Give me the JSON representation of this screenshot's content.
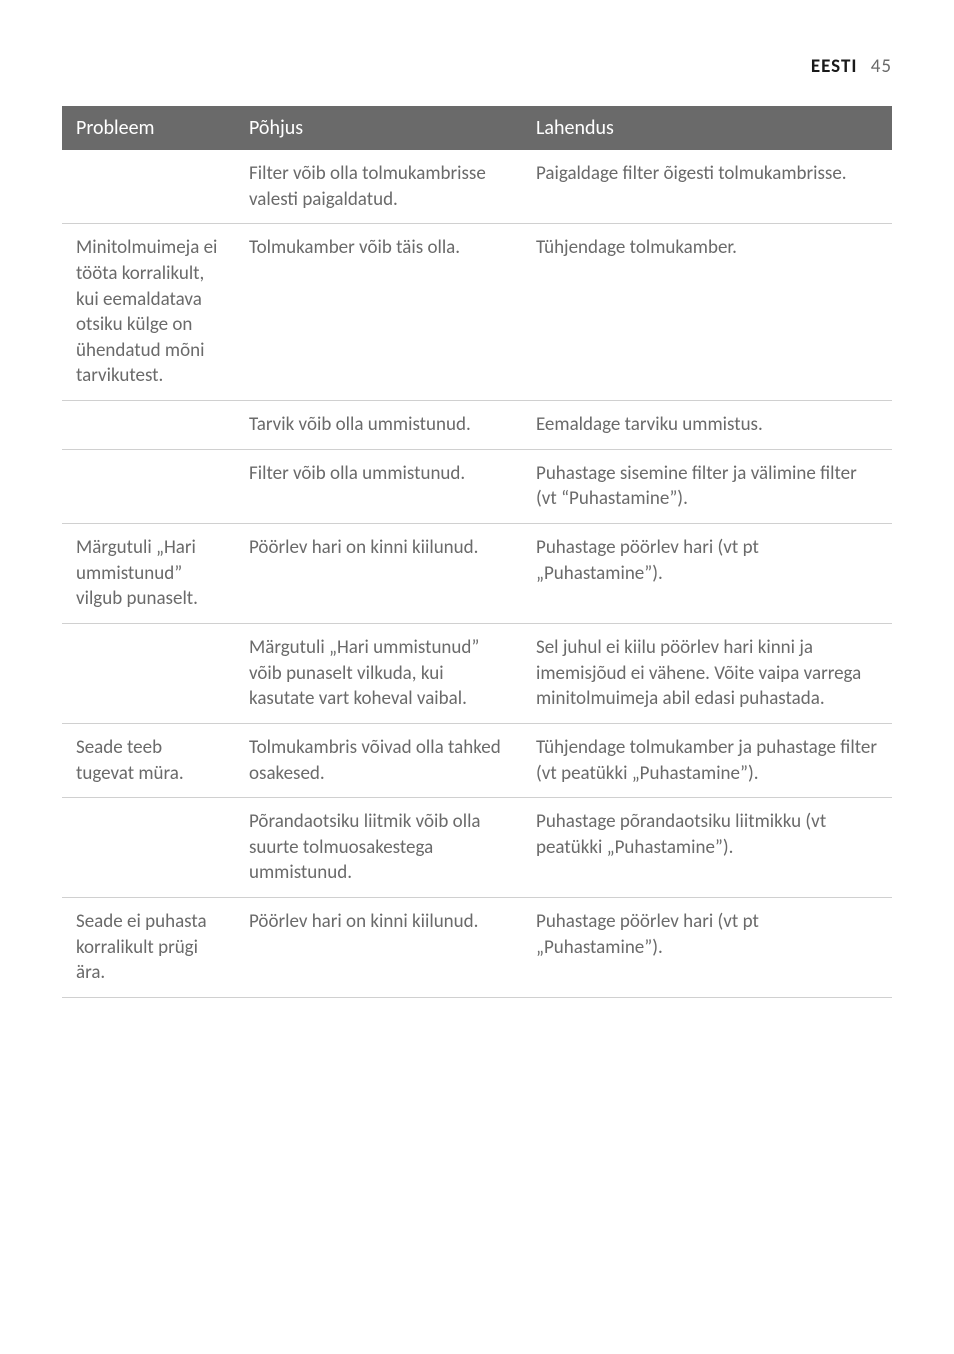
{
  "header": {
    "language": "EESTI",
    "page_number": "45"
  },
  "table": {
    "columns": [
      "Probleem",
      "Põhjus",
      "Lahendus"
    ],
    "rows": [
      {
        "problem": "",
        "cause": "Filter võib olla tolmukambrisse valesti paigaldatud.",
        "solution": "Paigaldage filter õigesti tolmukambrisse."
      },
      {
        "problem": "Minitolmuimeja ei tööta korralikult, kui eemaldatava otsiku külge on ühendatud mõni tarvikutest.",
        "cause": "Tolmukamber võib täis olla.",
        "solution": "Tühjendage tolmukamber."
      },
      {
        "problem": "",
        "cause": "Tarvik võib olla ummistunud.",
        "solution": "Eemaldage tarviku ummistus."
      },
      {
        "problem": "",
        "cause": "Filter võib olla ummistunud.",
        "solution": "Puhastage sisemine filter ja välimine filter (vt “Puhastamine”)."
      },
      {
        "problem": "Märgutuli „Hari ummistunud” vilgub punaselt.",
        "cause": "Pöörlev hari on kinni kiilunud.",
        "solution": "Puhastage pöörlev hari (vt pt „Puhastamine”)."
      },
      {
        "problem": "",
        "cause": "Märgutuli „Hari ummistunud” võib punaselt vilkuda, kui kasutate vart koheval vaibal.",
        "solution": "Sel juhul ei kiilu pöörlev hari kinni ja imemisjõud ei vähene. Võite vaipa varrega minitolmuimeja abil edasi puhastada."
      },
      {
        "problem": "Seade teeb tugevat müra.",
        "cause": "Tolmukambris võivad olla tahked osakesed.",
        "solution": "Tühjendage tolmukamber ja puhastage filter (vt peatükki „Puhastamine”)."
      },
      {
        "problem": "",
        "cause": "Põrandaotsiku liitmik võib olla suurte tolmuosakestega ummistunud.",
        "solution": "Puhastage põrandaotsiku liitmikku (vt peatükki „Puhastamine”)."
      },
      {
        "problem": "Seade ei puhasta korralikult prügi ära.",
        "cause": "Pöörlev hari on kinni kiilunud.",
        "solution": "Puhastage pöörlev hari (vt pt „Puhastamine”)."
      }
    ]
  }
}
